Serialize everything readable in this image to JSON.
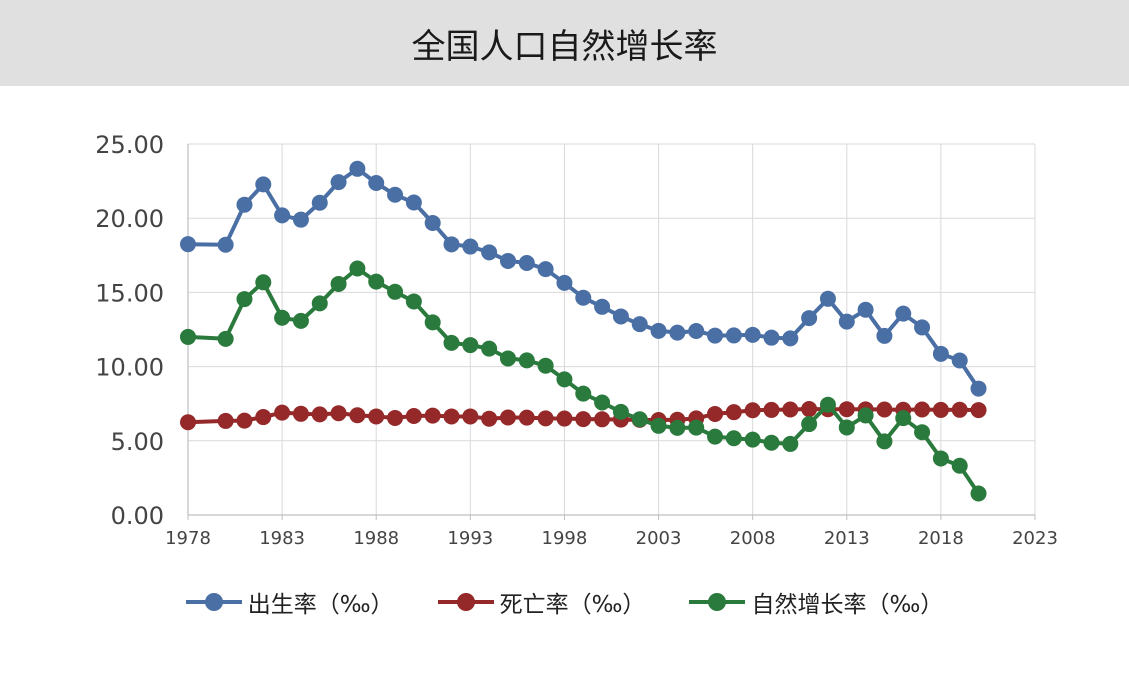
{
  "chart_data": {
    "type": "line",
    "title": "全国人口自然增长率",
    "xlabel": "",
    "ylabel": "",
    "xlim": [
      1978,
      2023
    ],
    "ylim": [
      0,
      25
    ],
    "xticks": [
      "1978",
      "1983",
      "1988",
      "1993",
      "1998",
      "2003",
      "2008",
      "2013",
      "2018",
      "2023"
    ],
    "yticks": [
      "0.00",
      "5.00",
      "10.00",
      "15.00",
      "20.00",
      "25.00"
    ],
    "grid": true,
    "legend_position": "bottom",
    "x": [
      1978,
      1980,
      1981,
      1982,
      1983,
      1984,
      1985,
      1986,
      1987,
      1988,
      1989,
      1990,
      1991,
      1992,
      1993,
      1994,
      1995,
      1996,
      1997,
      1998,
      1999,
      2000,
      2001,
      2002,
      2003,
      2004,
      2005,
      2006,
      2007,
      2008,
      2009,
      2010,
      2011,
      2012,
      2013,
      2014,
      2015,
      2016,
      2017,
      2018,
      2019,
      2020
    ],
    "series": [
      {
        "name": "出生率（‰）",
        "color": "#4a6fa5",
        "values": [
          18.25,
          18.21,
          20.91,
          22.28,
          20.19,
          19.9,
          21.04,
          22.43,
          23.33,
          22.37,
          21.58,
          21.06,
          19.68,
          18.24,
          18.09,
          17.7,
          17.12,
          16.98,
          16.57,
          15.64,
          14.64,
          14.03,
          13.38,
          12.86,
          12.41,
          12.29,
          12.4,
          12.09,
          12.1,
          12.14,
          11.95,
          11.9,
          13.27,
          14.57,
          13.03,
          13.83,
          12.07,
          13.57,
          12.64,
          10.86,
          10.41,
          8.52
        ]
      },
      {
        "name": "死亡率（‰）",
        "color": "#952828",
        "values": [
          6.25,
          6.34,
          6.36,
          6.6,
          6.9,
          6.82,
          6.78,
          6.86,
          6.72,
          6.64,
          6.54,
          6.67,
          6.7,
          6.64,
          6.64,
          6.49,
          6.57,
          6.56,
          6.51,
          6.5,
          6.46,
          6.45,
          6.43,
          6.41,
          6.4,
          6.42,
          6.51,
          6.81,
          6.93,
          7.06,
          7.08,
          7.11,
          7.14,
          7.13,
          7.13,
          7.12,
          7.11,
          7.09,
          7.11,
          7.08,
          7.09,
          7.07
        ]
      },
      {
        "name": "自然增长率（‰）",
        "color": "#2b7a3d",
        "values": [
          12.0,
          11.87,
          14.55,
          15.68,
          13.29,
          13.08,
          14.26,
          15.57,
          16.61,
          15.73,
          15.04,
          14.39,
          12.98,
          11.6,
          11.45,
          11.21,
          10.55,
          10.42,
          10.06,
          9.14,
          8.18,
          7.58,
          6.95,
          6.45,
          6.01,
          5.87,
          5.89,
          5.28,
          5.17,
          5.08,
          4.87,
          4.79,
          6.13,
          7.43,
          5.9,
          6.71,
          4.96,
          6.53,
          5.58,
          3.81,
          3.32,
          1.45
        ]
      }
    ]
  }
}
